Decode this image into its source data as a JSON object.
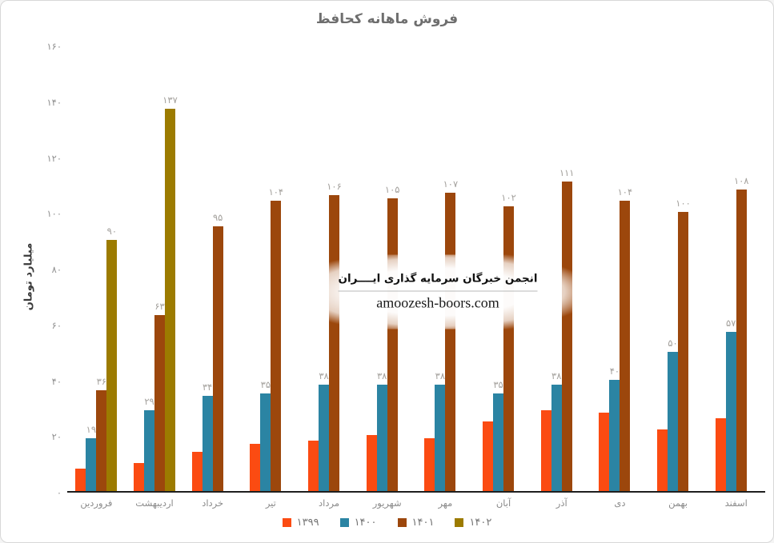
{
  "card": {
    "background": "#ffffff",
    "border_color": "#d8d8d8"
  },
  "chart_data": {
    "type": "bar",
    "title": "فروش ماهانه کحافظ",
    "ylabel": "میلیارد تومان",
    "xlabel": "",
    "ylim": [
      0,
      160
    ],
    "ytick_step": 20,
    "yticks": [
      "۰",
      "۲۰",
      "۴۰",
      "۶۰",
      "۸۰",
      "۱۰۰",
      "۱۲۰",
      "۱۴۰",
      "۱۶۰"
    ],
    "grid": false,
    "legend_position": "bottom",
    "categories": [
      "فروردین",
      "اردیبهشت",
      "خرداد",
      "تیر",
      "مرداد",
      "شهریور",
      "مهر",
      "آبان",
      "آذر",
      "دی",
      "بهمن",
      "اسفند"
    ],
    "series": [
      {
        "key": "1399",
        "name": "۱۳۹۹",
        "color": "#fb4b12",
        "values": [
          8,
          10,
          14,
          17,
          18,
          20,
          19,
          25,
          29,
          28,
          22,
          26
        ],
        "labels": []
      },
      {
        "key": "1400",
        "name": "۱۴۰۰",
        "color": "#2b84a3",
        "values": [
          19,
          29,
          34,
          35,
          38,
          38,
          38,
          35,
          38,
          40,
          50,
          57
        ],
        "labels": [
          "۱۹",
          "۲۹",
          "۳۴",
          "۳۵",
          "۳۸",
          "۳۸",
          "۳۸",
          "۳۵",
          "۳۸",
          "۴۰",
          "۵۰",
          "۵۷"
        ]
      },
      {
        "key": "1401",
        "name": "۱۴۰۱",
        "color": "#9c470c",
        "values": [
          36,
          63,
          95,
          104,
          106,
          105,
          107,
          102,
          111,
          104,
          100,
          108
        ],
        "labels": [
          "۳۶",
          "۶۳",
          "۹۵",
          "۱۰۴",
          "۱۰۶",
          "۱۰۵",
          "۱۰۷",
          "۱۰۲",
          "۱۱۱",
          "۱۰۴",
          "۱۰۰",
          "۱۰۸"
        ]
      },
      {
        "key": "1402",
        "name": "۱۴۰۲",
        "color": "#9c7b00",
        "values": [
          90,
          137,
          null,
          null,
          null,
          null,
          null,
          null,
          null,
          null,
          null,
          null
        ],
        "labels": [
          "۹۰",
          "۱۳۷"
        ]
      }
    ]
  },
  "watermark": {
    "line1": "انجمن خبرگان سرمایه گذاری ایــــران",
    "line2": "amoozesh-boors.com"
  }
}
